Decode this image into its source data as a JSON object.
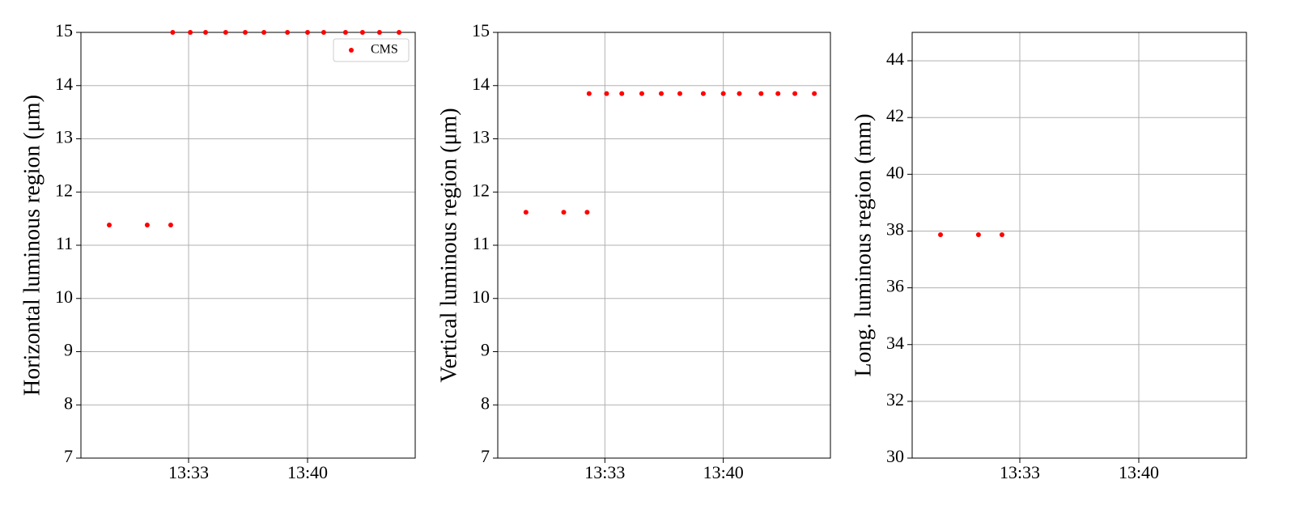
{
  "chart_data": [
    {
      "type": "scatter",
      "ylabel": "Horizontal luminous region (μm)",
      "x": [
        "13:28:20",
        "13:30:34",
        "13:31:57",
        "13:32:04",
        "13:33:06",
        "13:34:00",
        "13:35:11",
        "13:36:20",
        "13:37:26",
        "13:38:49",
        "13:40:00",
        "13:40:57",
        "13:42:14",
        "13:43:14",
        "13:44:14",
        "13:45:23"
      ],
      "series": [
        {
          "name": "CMS",
          "color": "#ff0000",
          "values": [
            11.38,
            11.38,
            11.38,
            15,
            15,
            15,
            15,
            15,
            15,
            15,
            15,
            15,
            15,
            15,
            15,
            15
          ]
        }
      ],
      "xlim": [
        "13:26:40",
        "13:46:20"
      ],
      "xticks": [
        "13:33",
        "13:40"
      ],
      "ylim": [
        7,
        15
      ],
      "yticks": [
        7,
        8,
        9,
        10,
        11,
        12,
        13,
        14,
        15
      ],
      "grid": true,
      "legend": "upper right"
    },
    {
      "type": "scatter",
      "ylabel": "Vertical luminous region (μm)",
      "x": [
        "13:28:20",
        "13:30:34",
        "13:31:57",
        "13:32:04",
        "13:33:06",
        "13:34:00",
        "13:35:11",
        "13:36:20",
        "13:37:26",
        "13:38:49",
        "13:40:00",
        "13:40:57",
        "13:42:14",
        "13:43:14",
        "13:44:14",
        "13:45:23"
      ],
      "series": [
        {
          "color": "#ff0000",
          "values": [
            11.62,
            11.62,
            11.62,
            13.85,
            13.85,
            13.85,
            13.85,
            13.85,
            13.85,
            13.85,
            13.85,
            13.85,
            13.85,
            13.85,
            13.85,
            13.85
          ]
        }
      ],
      "xlim": [
        "13:26:40",
        "13:46:20"
      ],
      "xticks": [
        "13:33",
        "13:40"
      ],
      "ylim": [
        7,
        15
      ],
      "yticks": [
        7,
        8,
        9,
        10,
        11,
        12,
        13,
        14,
        15
      ],
      "grid": true
    },
    {
      "type": "scatter",
      "ylabel": "Long. luminous region (mm)",
      "x": [
        "13:28:20",
        "13:30:34",
        "13:31:57",
        "13:32:04",
        "13:33:06",
        "13:34:00",
        "13:35:11",
        "13:36:20",
        "13:37:26",
        "13:38:49",
        "13:40:00",
        "13:40:57",
        "13:42:14",
        "13:43:14",
        "13:44:14",
        "13:45:23"
      ],
      "series": [
        {
          "color": "#ff0000",
          "values": [
            37.87,
            37.87,
            37.87,
            null,
            null,
            null,
            null,
            null,
            null,
            null,
            null,
            null,
            null,
            null,
            null,
            null
          ]
        }
      ],
      "xlim": [
        "13:26:40",
        "13:46:20"
      ],
      "xticks": [
        "13:33",
        "13:40"
      ],
      "ylim": [
        30,
        45
      ],
      "yticks": [
        30,
        32,
        34,
        36,
        38,
        40,
        42,
        44
      ],
      "grid": true
    }
  ]
}
